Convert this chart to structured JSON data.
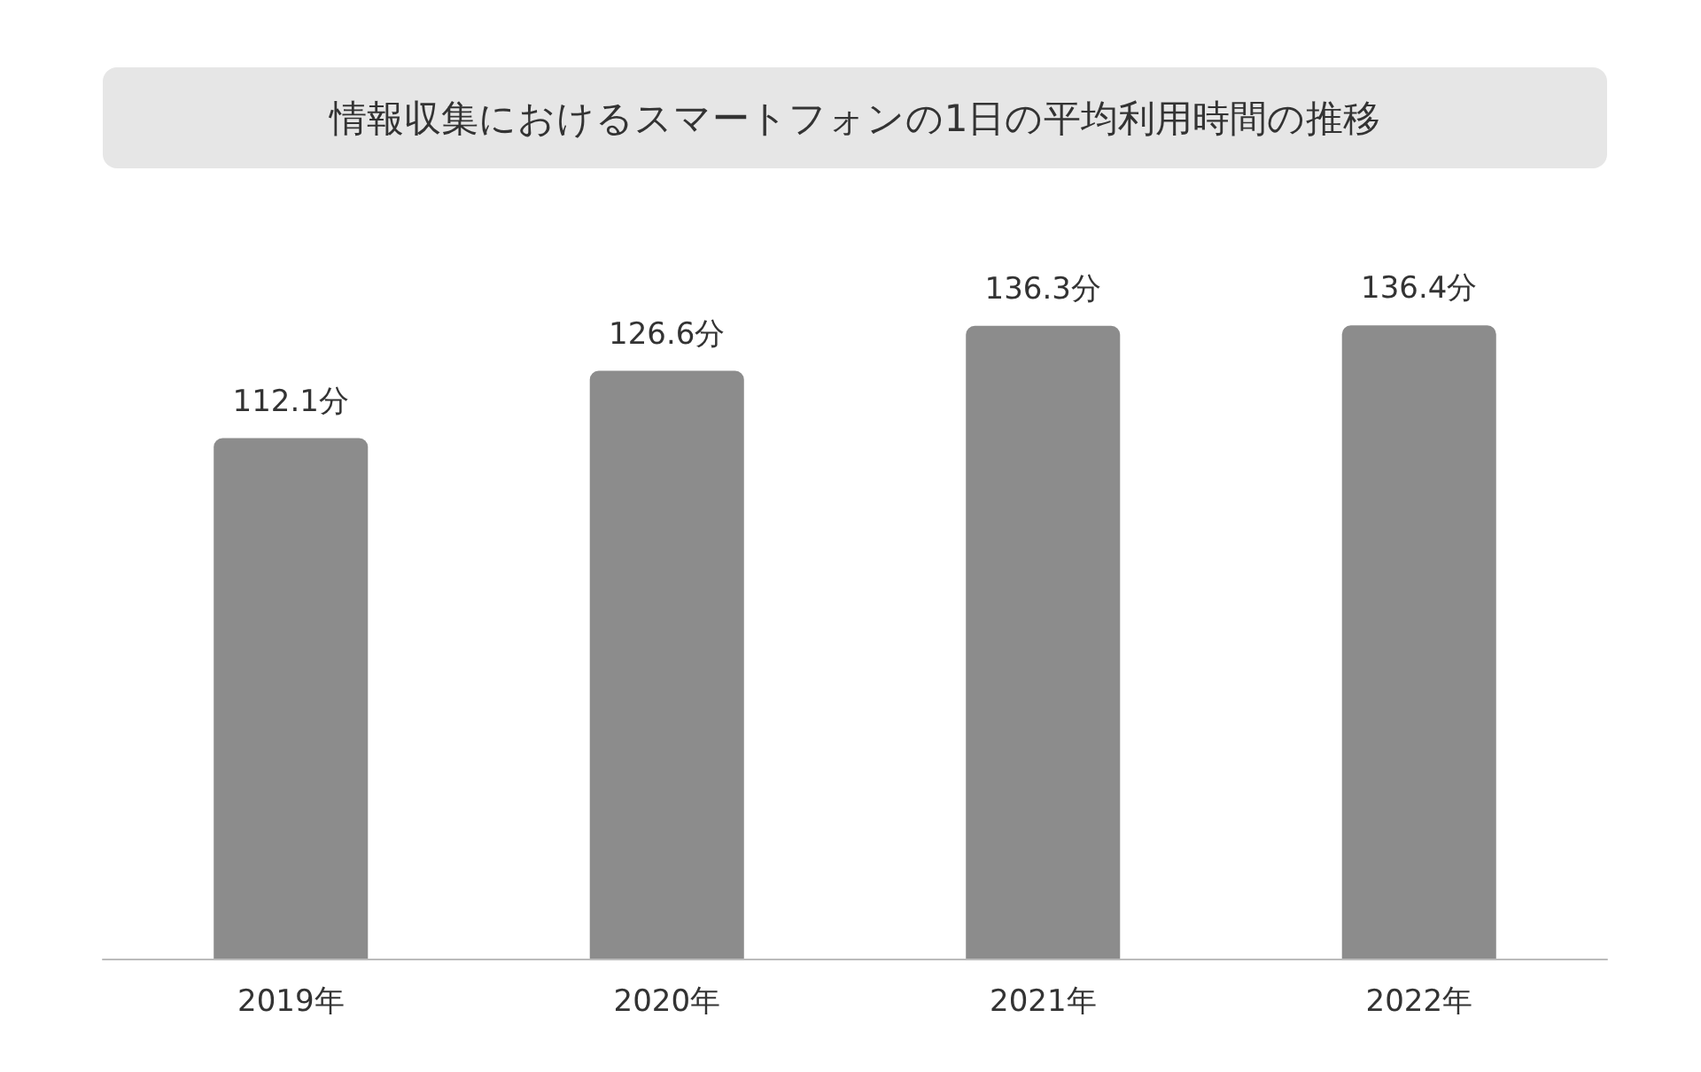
{
  "chart_data": {
    "type": "bar",
    "title": "情報収集におけるスマートフォンの1日の平均利用時間の推移",
    "categories": [
      "2019年",
      "2020年",
      "2021年",
      "2022年"
    ],
    "values": [
      112.1,
      126.6,
      136.3,
      136.4
    ],
    "value_labels": [
      "112.1分",
      "126.6分",
      "136.3分",
      "136.4分"
    ],
    "color": "#8c8c8c"
  }
}
